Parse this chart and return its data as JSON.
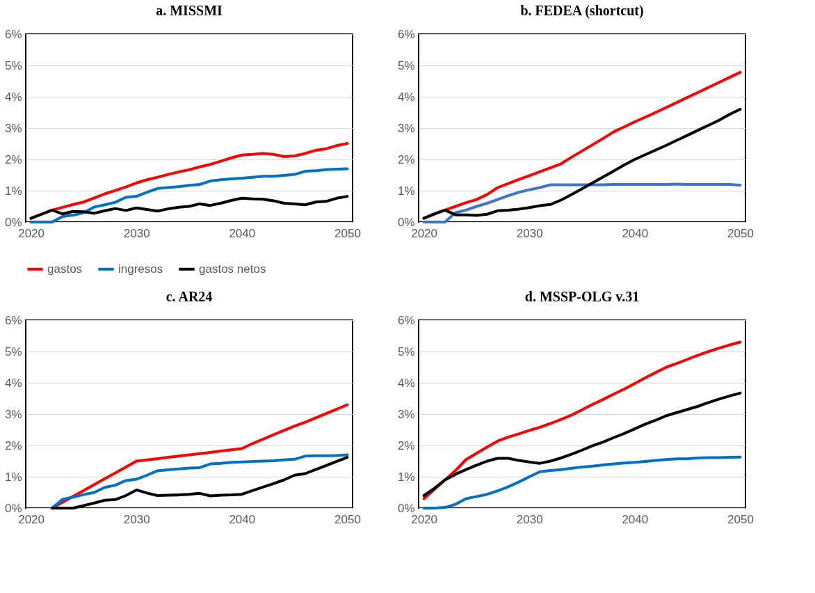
{
  "chart_data": [
    {
      "type": "line",
      "title": "a. MISSMI",
      "x": [
        2020,
        2021,
        2022,
        2023,
        2024,
        2025,
        2026,
        2027,
        2028,
        2029,
        2030,
        2031,
        2032,
        2033,
        2034,
        2035,
        2036,
        2037,
        2038,
        2039,
        2040,
        2041,
        2042,
        2043,
        2044,
        2045,
        2046,
        2047,
        2048,
        2049,
        2050
      ],
      "xlim": [
        2019.5,
        2050.5
      ],
      "xticks": [
        2020,
        2030,
        2040,
        2050
      ],
      "ylim": [
        0,
        6
      ],
      "yticks": [
        {
          "value": 0,
          "label": "0%"
        },
        {
          "value": 1,
          "label": "1%"
        },
        {
          "value": 2,
          "label": "2%"
        },
        {
          "value": 3,
          "label": "3%"
        },
        {
          "value": 4,
          "label": "4%"
        },
        {
          "value": 5,
          "label": "5%"
        },
        {
          "value": 6,
          "label": "6%"
        }
      ],
      "grid": "y",
      "legend": "bottom",
      "line_style": "solid",
      "marker": "none",
      "series": [
        {
          "name": "gastos",
          "color": "#ff0000",
          "values": [
            0.12,
            0.25,
            0.38,
            0.47,
            0.56,
            0.64,
            0.77,
            0.9,
            1.01,
            1.12,
            1.25,
            1.35,
            1.43,
            1.52,
            1.6,
            1.67,
            1.76,
            1.84,
            1.94,
            2.05,
            2.14,
            2.16,
            2.19,
            2.16,
            2.09,
            2.11,
            2.19,
            2.29,
            2.34,
            2.44,
            2.51
          ]
        },
        {
          "name": "ingresos",
          "color": "#0070c0",
          "values": [
            0,
            0,
            0,
            0.18,
            0.22,
            0.3,
            0.48,
            0.55,
            0.63,
            0.79,
            0.82,
            0.95,
            1.07,
            1.1,
            1.13,
            1.17,
            1.2,
            1.31,
            1.35,
            1.38,
            1.4,
            1.43,
            1.46,
            1.46,
            1.49,
            1.52,
            1.62,
            1.64,
            1.67,
            1.69,
            1.7
          ]
        },
        {
          "name": "gastos netos",
          "color": "#000000",
          "values": [
            0.12,
            0.25,
            0.38,
            0.26,
            0.34,
            0.33,
            0.28,
            0.36,
            0.43,
            0.37,
            0.45,
            0.4,
            0.35,
            0.42,
            0.47,
            0.5,
            0.58,
            0.53,
            0.6,
            0.69,
            0.76,
            0.74,
            0.73,
            0.68,
            0.6,
            0.58,
            0.55,
            0.64,
            0.66,
            0.76,
            0.82
          ]
        }
      ]
    },
    {
      "type": "line",
      "title": "b. FEDEA (shortcut)",
      "x": [
        2020,
        2021,
        2022,
        2023,
        2024,
        2025,
        2026,
        2027,
        2028,
        2029,
        2030,
        2031,
        2032,
        2033,
        2034,
        2035,
        2036,
        2037,
        2038,
        2039,
        2040,
        2041,
        2042,
        2043,
        2044,
        2045,
        2046,
        2047,
        2048,
        2049,
        2050
      ],
      "xlim": [
        2019.5,
        2050.5
      ],
      "xticks": [
        2020,
        2030,
        2040,
        2050
      ],
      "ylim": [
        0,
        6
      ],
      "yticks": [
        {
          "value": 0,
          "label": "0%"
        },
        {
          "value": 1,
          "label": "1%"
        },
        {
          "value": 2,
          "label": "2%"
        },
        {
          "value": 3,
          "label": "3%"
        },
        {
          "value": 4,
          "label": "4%"
        },
        {
          "value": 5,
          "label": "5%"
        },
        {
          "value": 6,
          "label": "6%"
        }
      ],
      "grid": "y",
      "line_style": "solid",
      "marker": "none",
      "series": [
        {
          "color": "#ff0000",
          "values": [
            0.12,
            0.26,
            0.38,
            0.5,
            0.62,
            0.72,
            0.88,
            1.1,
            1.23,
            1.36,
            1.48,
            1.61,
            1.73,
            1.86,
            2.07,
            2.27,
            2.47,
            2.67,
            2.88,
            3.04,
            3.2,
            3.35,
            3.5,
            3.66,
            3.82,
            3.98,
            4.14,
            4.3,
            4.46,
            4.62,
            4.78
          ]
        },
        {
          "color": "#4472c4",
          "values": [
            0,
            0,
            0,
            0.3,
            0.38,
            0.5,
            0.6,
            0.72,
            0.84,
            0.95,
            1.03,
            1.1,
            1.19,
            1.19,
            1.19,
            1.19,
            1.19,
            1.19,
            1.2,
            1.2,
            1.2,
            1.2,
            1.2,
            1.2,
            1.21,
            1.2,
            1.2,
            1.2,
            1.2,
            1.2,
            1.18
          ]
        },
        {
          "color": "#000000",
          "values": [
            0.12,
            0.26,
            0.38,
            0.23,
            0.23,
            0.21,
            0.25,
            0.36,
            0.38,
            0.41,
            0.46,
            0.52,
            0.56,
            0.7,
            0.88,
            1.06,
            1.25,
            1.44,
            1.63,
            1.82,
            2.0,
            2.15,
            2.3,
            2.45,
            2.61,
            2.77,
            2.93,
            3.09,
            3.25,
            3.44,
            3.6
          ]
        }
      ]
    },
    {
      "type": "line",
      "title": "c.   AR24",
      "xlim": [
        2019.5,
        2050.5
      ],
      "xticks": [
        2020,
        2030,
        2040,
        2050
      ],
      "ylim": [
        0,
        6
      ],
      "yticks": [
        {
          "value": 0,
          "label": "0%"
        },
        {
          "value": 1,
          "label": "1%"
        },
        {
          "value": 2,
          "label": "2%"
        },
        {
          "value": 3,
          "label": "3%"
        },
        {
          "value": 4,
          "label": "4%"
        },
        {
          "value": 5,
          "label": "5%"
        },
        {
          "value": 6,
          "label": "6%"
        }
      ],
      "grid": "y",
      "line_style": "solid",
      "marker": "none",
      "series": [
        {
          "color": "#ff0000",
          "x": [
            2022,
            2023,
            2024,
            2025,
            2026,
            2027,
            2028,
            2029,
            2030,
            2031,
            2032,
            2033,
            2034,
            2035,
            2036,
            2037,
            2038,
            2039,
            2040,
            2041,
            2042,
            2043,
            2044,
            2045,
            2046,
            2047,
            2048,
            2049,
            2050
          ],
          "values": [
            0,
            0.19,
            0.38,
            0.56,
            0.75,
            0.94,
            1.12,
            1.31,
            1.5,
            1.54,
            1.58,
            1.62,
            1.66,
            1.7,
            1.74,
            1.78,
            1.82,
            1.86,
            1.9,
            2.06,
            2.2,
            2.34,
            2.48,
            2.62,
            2.74,
            2.88,
            3.02,
            3.16,
            3.3
          ]
        },
        {
          "color": "#0070c0",
          "x": [
            2022,
            2023,
            2024,
            2025,
            2026,
            2027,
            2028,
            2029,
            2030,
            2031,
            2032,
            2033,
            2034,
            2035,
            2036,
            2037,
            2038,
            2039,
            2040,
            2041,
            2042,
            2043,
            2044,
            2045,
            2046,
            2047,
            2048,
            2049,
            2050
          ],
          "values": [
            0,
            0.28,
            0.35,
            0.43,
            0.5,
            0.66,
            0.73,
            0.88,
            0.92,
            1.05,
            1.19,
            1.22,
            1.25,
            1.28,
            1.29,
            1.41,
            1.43,
            1.46,
            1.47,
            1.49,
            1.5,
            1.51,
            1.54,
            1.56,
            1.66,
            1.67,
            1.67,
            1.68,
            1.7
          ]
        },
        {
          "color": "#000000",
          "x": [
            2022,
            2023,
            2024,
            2025,
            2026,
            2027,
            2028,
            2029,
            2030,
            2031,
            2032,
            2033,
            2034,
            2035,
            2036,
            2037,
            2038,
            2039,
            2040,
            2041,
            2042,
            2043,
            2044,
            2045,
            2046,
            2047,
            2048,
            2049,
            2050
          ],
          "values": [
            0,
            0,
            0,
            0.08,
            0.16,
            0.25,
            0.27,
            0.4,
            0.58,
            0.48,
            0.4,
            0.41,
            0.42,
            0.44,
            0.47,
            0.39,
            0.41,
            0.42,
            0.44,
            0.56,
            0.67,
            0.78,
            0.9,
            1.05,
            1.1,
            1.23,
            1.36,
            1.49,
            1.62
          ]
        }
      ]
    },
    {
      "type": "line",
      "title": "d. MSSP-OLG v.31",
      "x": [
        2020,
        2021,
        2022,
        2023,
        2024,
        2025,
        2026,
        2027,
        2028,
        2029,
        2030,
        2031,
        2032,
        2033,
        2034,
        2035,
        2036,
        2037,
        2038,
        2039,
        2040,
        2041,
        2042,
        2043,
        2044,
        2045,
        2046,
        2047,
        2048,
        2049,
        2050
      ],
      "xlim": [
        2019.5,
        2050.5
      ],
      "xticks": [
        2020,
        2030,
        2040,
        2050
      ],
      "ylim": [
        0,
        6
      ],
      "yticks": [
        {
          "value": 0,
          "label": "0%"
        },
        {
          "value": 1,
          "label": "1%"
        },
        {
          "value": 2,
          "label": "2%"
        },
        {
          "value": 3,
          "label": "3%"
        },
        {
          "value": 4,
          "label": "4%"
        },
        {
          "value": 5,
          "label": "5%"
        },
        {
          "value": 6,
          "label": "6%"
        }
      ],
      "grid": "y",
      "line_style": "solid",
      "marker": "none",
      "series": [
        {
          "color": "#ff0000",
          "values": [
            0.3,
            0.6,
            0.9,
            1.2,
            1.55,
            1.75,
            1.95,
            2.14,
            2.27,
            2.37,
            2.48,
            2.58,
            2.7,
            2.83,
            2.97,
            3.14,
            3.31,
            3.47,
            3.64,
            3.8,
            3.98,
            4.16,
            4.33,
            4.5,
            4.62,
            4.75,
            4.88,
            5.0,
            5.11,
            5.21,
            5.3
          ]
        },
        {
          "color": "#0070c0",
          "values": [
            0,
            0,
            0.02,
            0.12,
            0.3,
            0.37,
            0.44,
            0.55,
            0.68,
            0.83,
            1.0,
            1.16,
            1.2,
            1.23,
            1.27,
            1.31,
            1.34,
            1.38,
            1.41,
            1.44,
            1.46,
            1.49,
            1.52,
            1.55,
            1.57,
            1.58,
            1.6,
            1.61,
            1.61,
            1.62,
            1.63
          ]
        },
        {
          "color": "#000000",
          "values": [
            0.4,
            0.63,
            0.9,
            1.08,
            1.23,
            1.37,
            1.5,
            1.59,
            1.59,
            1.52,
            1.47,
            1.43,
            1.5,
            1.6,
            1.72,
            1.85,
            1.99,
            2.11,
            2.25,
            2.38,
            2.53,
            2.68,
            2.81,
            2.95,
            3.05,
            3.15,
            3.25,
            3.37,
            3.48,
            3.58,
            3.67
          ]
        }
      ]
    }
  ]
}
